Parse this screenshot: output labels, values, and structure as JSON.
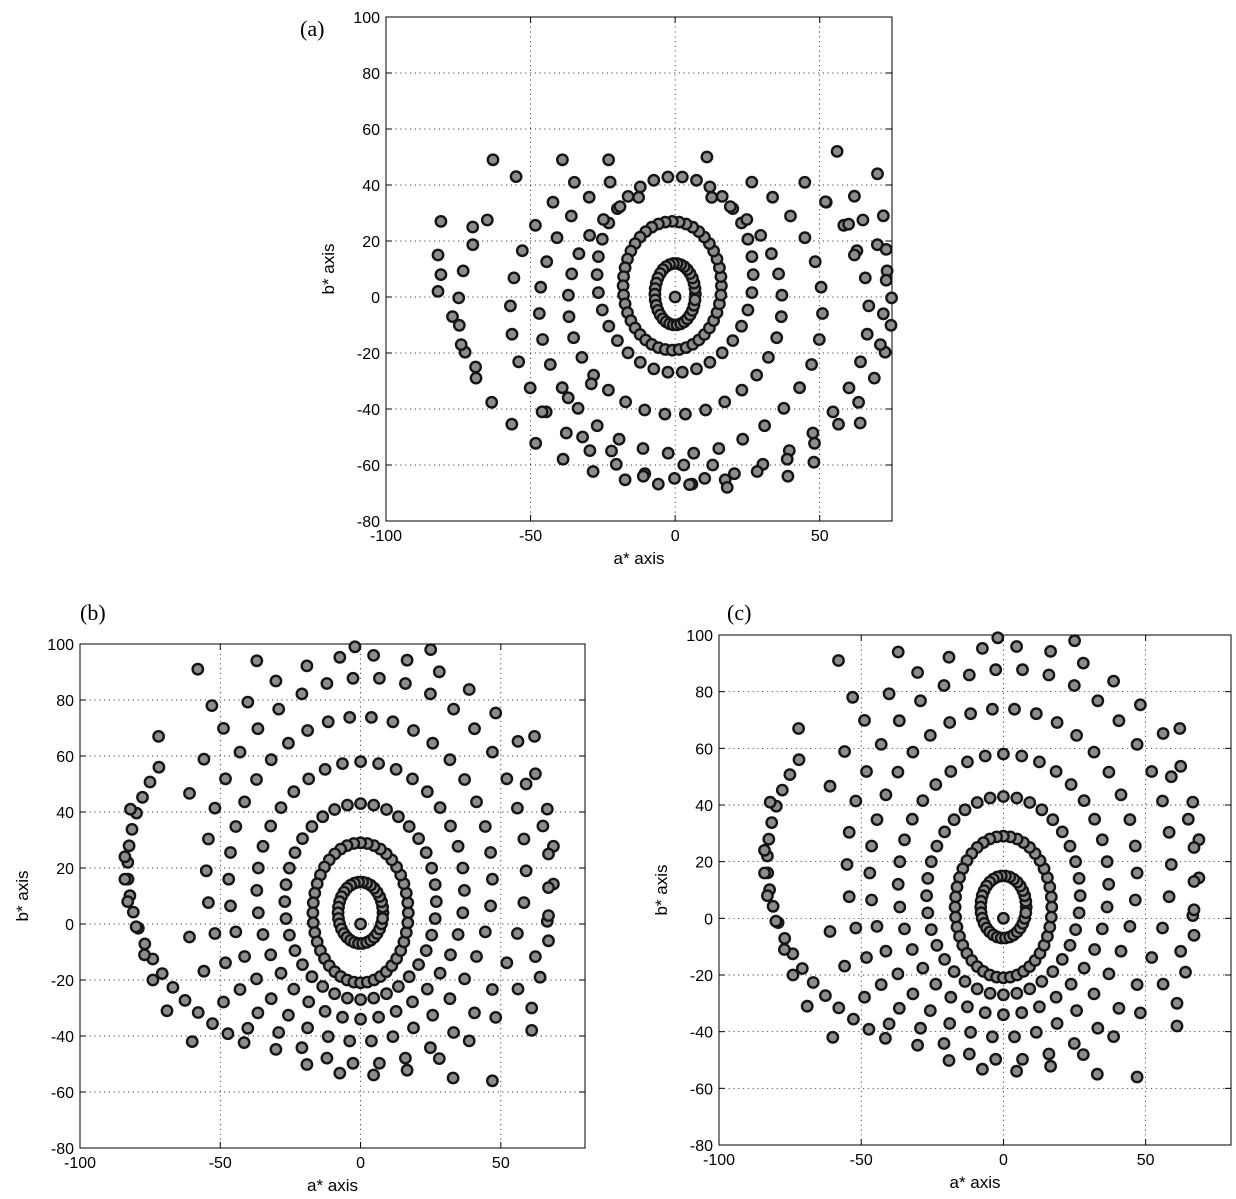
{
  "chart_data": [
    {
      "type": "scatter",
      "panel_label": "(a)",
      "xlabel": "a* axis",
      "ylabel": "b* axis",
      "xlim": [
        -100,
        75
      ],
      "ylim": [
        -80,
        100
      ],
      "xticks": [
        -100,
        -50,
        0,
        50
      ],
      "yticks": [
        -80,
        -60,
        -40,
        -20,
        0,
        20,
        40,
        60,
        80,
        100
      ],
      "grid": true,
      "marker_color": "#8c8c8c",
      "edge_color": "#141414",
      "rings": [
        {
          "cx": 0,
          "cy": 1,
          "rx": 7,
          "ry": 11,
          "n": 34
        },
        {
          "cx": -1,
          "cy": 4,
          "rx": 17,
          "ry": 23,
          "n": 44
        },
        {
          "cx": 0,
          "cy": 8,
          "rx": 27,
          "ry": 35,
          "n": 34
        },
        {
          "cx": 0,
          "cy": -2,
          "rx": 37,
          "ry": 40,
          "n": 30,
          "from": 110,
          "to": 430
        },
        {
          "cx": 2,
          "cy": -4,
          "rx": 49,
          "ry": 52,
          "n": 30,
          "from": 120,
          "to": 420
        },
        {
          "cx": 5,
          "cy": -5,
          "rx": 62,
          "ry": 60,
          "n": 30,
          "from": 130,
          "to": 410
        },
        {
          "cx": 0,
          "cy": -4,
          "rx": 75,
          "ry": 63,
          "n": 28,
          "from": 150,
          "to": 390
        }
      ],
      "points": [
        [
          0,
          0
        ],
        [
          -63,
          49
        ],
        [
          -39,
          49
        ],
        [
          -23,
          49
        ],
        [
          11,
          50
        ],
        [
          56,
          52
        ],
        [
          -55,
          43
        ],
        [
          70,
          44
        ],
        [
          -81,
          27
        ],
        [
          -70,
          25
        ],
        [
          72,
          29
        ],
        [
          -82,
          15
        ],
        [
          -81,
          8
        ],
        [
          -82,
          2
        ],
        [
          -77,
          -7
        ],
        [
          -74,
          -17
        ],
        [
          -69,
          -25
        ],
        [
          73,
          17
        ],
        [
          73,
          6
        ],
        [
          72,
          -6
        ],
        [
          71,
          -17
        ],
        [
          18,
          -68
        ],
        [
          5,
          -67
        ],
        [
          -11,
          -64
        ],
        [
          39,
          -64
        ],
        [
          48,
          -59
        ],
        [
          -22,
          -55
        ],
        [
          3,
          -60
        ],
        [
          13,
          -60
        ],
        [
          -32,
          -50
        ],
        [
          64,
          -45
        ],
        [
          -46,
          -41
        ],
        [
          -37,
          -36
        ],
        [
          -29,
          -31
        ],
        [
          62,
          36
        ],
        [
          60,
          26
        ],
        [
          62,
          15
        ],
        [
          52,
          34
        ]
      ]
    },
    {
      "type": "scatter",
      "panel_label": "(b)",
      "xlabel": "a* axis",
      "ylabel": "b* axis",
      "xlim": [
        -100,
        80
      ],
      "ylim": [
        -80,
        100
      ],
      "xticks": [
        -100,
        -50,
        0,
        50
      ],
      "yticks": [
        -80,
        -60,
        -40,
        -20,
        0,
        20,
        40,
        60,
        80,
        100
      ],
      "grid": true,
      "marker_color": "#8c8c8c",
      "edge_color": "#141414",
      "rings": [
        {
          "cx": 0,
          "cy": 4,
          "rx": 8,
          "ry": 11,
          "n": 34
        },
        {
          "cx": 0,
          "cy": 4,
          "rx": 17,
          "ry": 25,
          "n": 44
        },
        {
          "cx": 0,
          "cy": 8,
          "rx": 27,
          "ry": 35,
          "n": 36
        },
        {
          "cx": 0,
          "cy": 12,
          "rx": 37,
          "ry": 46,
          "n": 36
        },
        {
          "cx": 0,
          "cy": 16,
          "rx": 47,
          "ry": 58,
          "n": 38
        },
        {
          "cx": 2,
          "cy": 19,
          "rx": 57,
          "ry": 69,
          "n": 38
        },
        {
          "cx": 2,
          "cy": 21,
          "rx": 67,
          "ry": 75,
          "n": 32,
          "from": 200,
          "to": 520
        },
        {
          "cx": 0,
          "cy": 20,
          "rx": 83,
          "ry": 72,
          "n": 20,
          "from": 150,
          "to": 240
        }
      ],
      "points": [
        [
          0,
          0
        ],
        [
          -58,
          91
        ],
        [
          -37,
          94
        ],
        [
          -2,
          99
        ],
        [
          25,
          98
        ],
        [
          -53,
          78
        ],
        [
          -72,
          67
        ],
        [
          -82,
          41
        ],
        [
          -84,
          24
        ],
        [
          -84,
          16
        ],
        [
          -83,
          8
        ],
        [
          -80,
          -1
        ],
        [
          -77,
          -11
        ],
        [
          -74,
          -20
        ],
        [
          -69,
          -31
        ],
        [
          -60,
          -42
        ],
        [
          33,
          -55
        ],
        [
          47,
          -56
        ],
        [
          65,
          35
        ],
        [
          67,
          25
        ],
        [
          67,
          13
        ],
        [
          67,
          3
        ],
        [
          67,
          -6
        ],
        [
          64,
          -19
        ],
        [
          61,
          -30
        ],
        [
          61,
          -38
        ],
        [
          59,
          50
        ],
        [
          62,
          67
        ]
      ]
    },
    {
      "type": "scatter",
      "panel_label": "(c)",
      "xlabel": "a* axis",
      "ylabel": "b* axis",
      "xlim": [
        -100,
        80
      ],
      "ylim": [
        -80,
        100
      ],
      "xticks": [
        -100,
        -50,
        0,
        50
      ],
      "yticks": [
        -80,
        -60,
        -40,
        -20,
        0,
        20,
        40,
        60,
        80,
        100
      ],
      "grid": true,
      "marker_color": "#8c8c8c",
      "edge_color": "#141414",
      "rings": [
        {
          "cx": 0,
          "cy": 4,
          "rx": 8,
          "ry": 11,
          "n": 34
        },
        {
          "cx": 0,
          "cy": 4,
          "rx": 17,
          "ry": 25,
          "n": 44
        },
        {
          "cx": 0,
          "cy": 8,
          "rx": 27,
          "ry": 35,
          "n": 36
        },
        {
          "cx": 0,
          "cy": 12,
          "rx": 37,
          "ry": 46,
          "n": 36
        },
        {
          "cx": 0,
          "cy": 16,
          "rx": 47,
          "ry": 58,
          "n": 38
        },
        {
          "cx": 2,
          "cy": 19,
          "rx": 57,
          "ry": 69,
          "n": 38
        },
        {
          "cx": 2,
          "cy": 21,
          "rx": 67,
          "ry": 75,
          "n": 32,
          "from": 200,
          "to": 520
        },
        {
          "cx": 0,
          "cy": 20,
          "rx": 83,
          "ry": 72,
          "n": 20,
          "from": 150,
          "to": 240
        }
      ],
      "points": [
        [
          0,
          0
        ],
        [
          -58,
          91
        ],
        [
          -37,
          94
        ],
        [
          -2,
          99
        ],
        [
          25,
          98
        ],
        [
          -53,
          78
        ],
        [
          -72,
          67
        ],
        [
          -82,
          41
        ],
        [
          -84,
          24
        ],
        [
          -84,
          16
        ],
        [
          -83,
          8
        ],
        [
          -80,
          -1
        ],
        [
          -77,
          -11
        ],
        [
          -74,
          -20
        ],
        [
          -69,
          -31
        ],
        [
          -60,
          -42
        ],
        [
          33,
          -55
        ],
        [
          47,
          -56
        ],
        [
          65,
          35
        ],
        [
          67,
          25
        ],
        [
          67,
          13
        ],
        [
          67,
          3
        ],
        [
          67,
          -6
        ],
        [
          64,
          -19
        ],
        [
          61,
          -30
        ],
        [
          61,
          -38
        ],
        [
          59,
          50
        ],
        [
          62,
          67
        ]
      ]
    }
  ]
}
